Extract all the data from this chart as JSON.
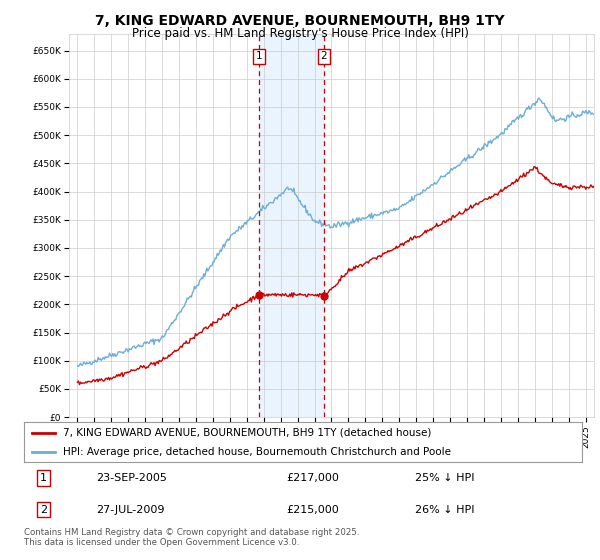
{
  "title": "7, KING EDWARD AVENUE, BOURNEMOUTH, BH9 1TY",
  "subtitle": "Price paid vs. HM Land Registry's House Price Index (HPI)",
  "legend_line1": "7, KING EDWARD AVENUE, BOURNEMOUTH, BH9 1TY (detached house)",
  "legend_line2": "HPI: Average price, detached house, Bournemouth Christchurch and Poole",
  "footer": "Contains HM Land Registry data © Crown copyright and database right 2025.\nThis data is licensed under the Open Government Licence v3.0.",
  "sale1_label": "1",
  "sale1_date": "23-SEP-2005",
  "sale1_price": "£217,000",
  "sale1_hpi": "25% ↓ HPI",
  "sale2_label": "2",
  "sale2_date": "27-JUL-2009",
  "sale2_price": "£215,000",
  "sale2_hpi": "26% ↓ HPI",
  "sale1_x": 2005.73,
  "sale2_x": 2009.56,
  "sale1_y": 217000,
  "sale2_y": 215000,
  "hpi_color": "#6baed6",
  "price_color": "#cc0000",
  "marker_color": "#cc0000",
  "vline_color": "#cc0000",
  "shade_color": "#ddeeff",
  "background_color": "#ffffff",
  "grid_color": "#cccccc",
  "ylim": [
    0,
    680000
  ],
  "xlim": [
    1994.5,
    2025.5
  ],
  "yticks": [
    0,
    50000,
    100000,
    150000,
    200000,
    250000,
    300000,
    350000,
    400000,
    450000,
    500000,
    550000,
    600000,
    650000
  ],
  "xticks": [
    1995,
    1996,
    1997,
    1998,
    1999,
    2000,
    2001,
    2002,
    2003,
    2004,
    2005,
    2006,
    2007,
    2008,
    2009,
    2010,
    2011,
    2012,
    2013,
    2014,
    2015,
    2016,
    2017,
    2018,
    2019,
    2020,
    2021,
    2022,
    2023,
    2024,
    2025
  ]
}
